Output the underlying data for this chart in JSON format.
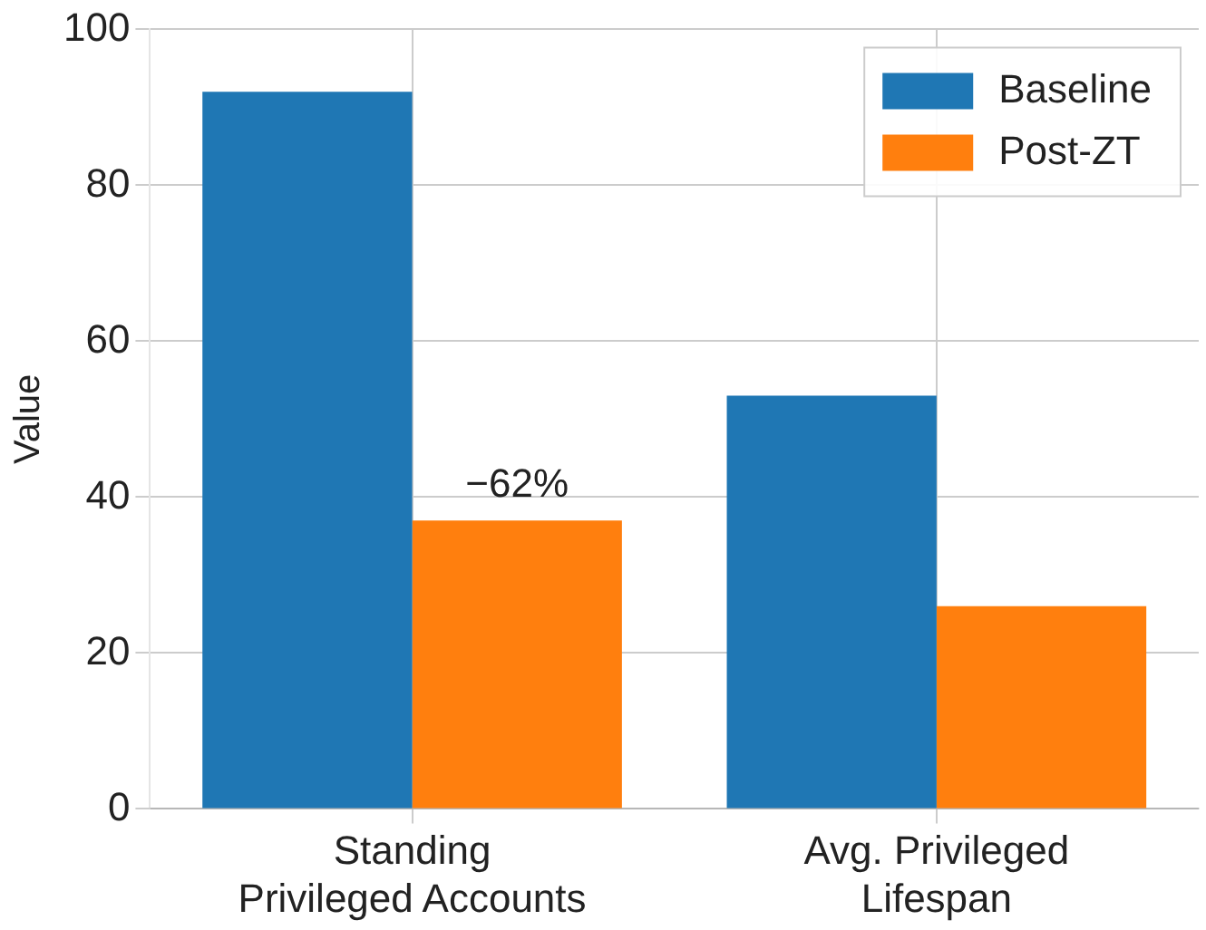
{
  "chart_data": {
    "type": "bar",
    "ylabel": "Value",
    "categories": [
      "Standing\nPrivileged Accounts",
      "Avg. Privileged\nLifespan"
    ],
    "series": [
      {
        "name": "Baseline",
        "color": "#1f77b4",
        "values": [
          92,
          53
        ]
      },
      {
        "name": "Post-ZT",
        "color": "#ff7f0e",
        "values": [
          37,
          26
        ]
      }
    ],
    "ylim": [
      0,
      100
    ],
    "yticks": [
      0,
      20,
      40,
      60,
      80,
      100
    ],
    "grid": true,
    "legend": "top right",
    "annotations": [
      {
        "text": "−62%",
        "x": "Standing\nPrivileged Accounts",
        "y": 37
      }
    ]
  }
}
